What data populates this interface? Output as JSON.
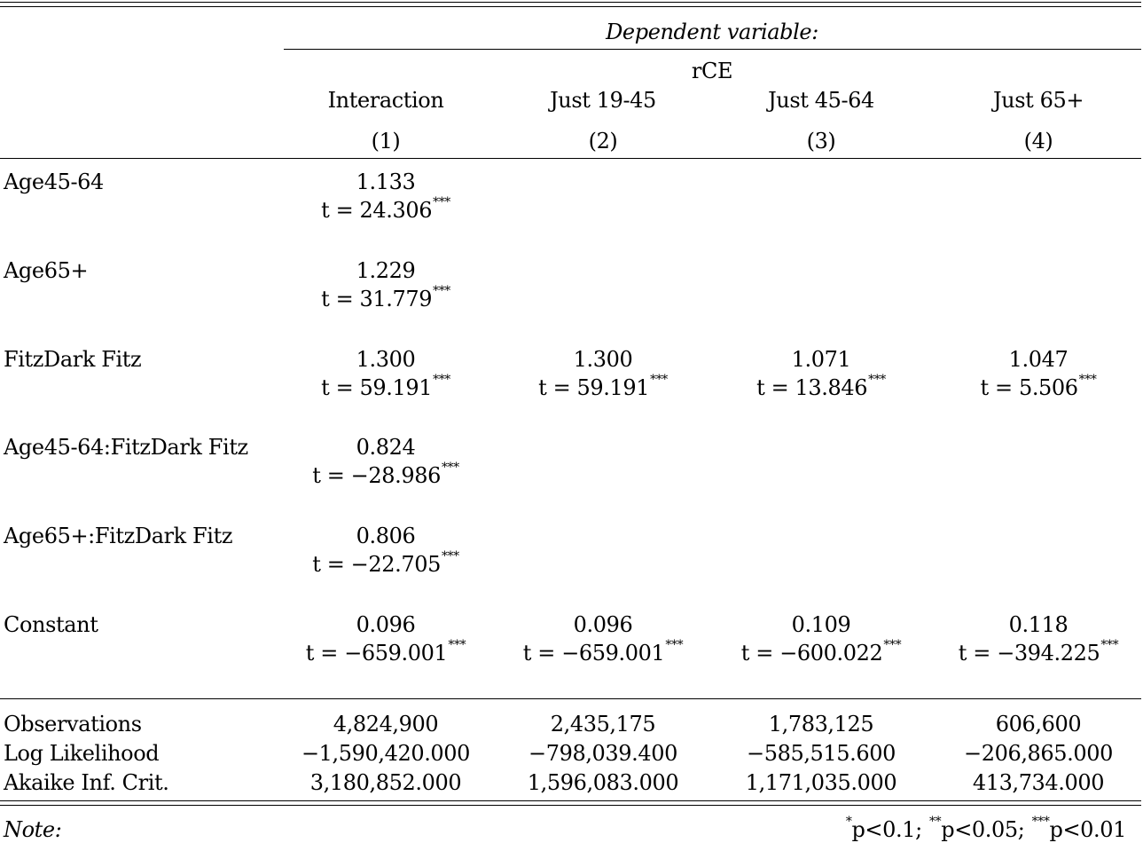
{
  "header": {
    "dependent_variable_label": "Dependent variable:",
    "dependent_variable": "rCE",
    "columns": [
      {
        "model": "Interaction",
        "number": "(1)"
      },
      {
        "model": "Just 19-45",
        "number": "(2)"
      },
      {
        "model": "Just 45-64",
        "number": "(3)"
      },
      {
        "model": "Just 65+",
        "number": "(4)"
      }
    ]
  },
  "rows": [
    {
      "label": "Age45-64",
      "cells": [
        {
          "coef": "1.133",
          "t": "t = 24.306",
          "stars": "***"
        },
        {
          "coef": "",
          "t": "",
          "stars": ""
        },
        {
          "coef": "",
          "t": "",
          "stars": ""
        },
        {
          "coef": "",
          "t": "",
          "stars": ""
        }
      ]
    },
    {
      "label": "Age65+",
      "cells": [
        {
          "coef": "1.229",
          "t": "t = 31.779",
          "stars": "***"
        },
        {
          "coef": "",
          "t": "",
          "stars": ""
        },
        {
          "coef": "",
          "t": "",
          "stars": ""
        },
        {
          "coef": "",
          "t": "",
          "stars": ""
        }
      ]
    },
    {
      "label": "FitzDark Fitz",
      "cells": [
        {
          "coef": "1.300",
          "t": "t = 59.191",
          "stars": "***"
        },
        {
          "coef": "1.300",
          "t": "t = 59.191",
          "stars": "***"
        },
        {
          "coef": "1.071",
          "t": "t = 13.846",
          "stars": "***"
        },
        {
          "coef": "1.047",
          "t": "t = 5.506",
          "stars": "***"
        }
      ]
    },
    {
      "label": "Age45-64:FitzDark Fitz",
      "cells": [
        {
          "coef": "0.824",
          "t": "t = −28.986",
          "stars": "***"
        },
        {
          "coef": "",
          "t": "",
          "stars": ""
        },
        {
          "coef": "",
          "t": "",
          "stars": ""
        },
        {
          "coef": "",
          "t": "",
          "stars": ""
        }
      ]
    },
    {
      "label": "Age65+:FitzDark Fitz",
      "cells": [
        {
          "coef": "0.806",
          "t": "t = −22.705",
          "stars": "***"
        },
        {
          "coef": "",
          "t": "",
          "stars": ""
        },
        {
          "coef": "",
          "t": "",
          "stars": ""
        },
        {
          "coef": "",
          "t": "",
          "stars": ""
        }
      ]
    },
    {
      "label": "Constant",
      "cells": [
        {
          "coef": "0.096",
          "t": "t = −659.001",
          "stars": "***"
        },
        {
          "coef": "0.096",
          "t": "t = −659.001",
          "stars": "***"
        },
        {
          "coef": "0.109",
          "t": "t = −600.022",
          "stars": "***"
        },
        {
          "coef": "0.118",
          "t": "t = −394.225",
          "stars": "***"
        }
      ]
    }
  ],
  "stats": [
    {
      "label": "Observations",
      "values": [
        "4,824,900",
        "2,435,175",
        "1,783,125",
        "606,600"
      ]
    },
    {
      "label": "Log Likelihood",
      "values": [
        "−1,590,420.000",
        "−798,039.400",
        "−585,515.600",
        "−206,865.000"
      ]
    },
    {
      "label": "Akaike Inf. Crit.",
      "values": [
        "3,180,852.000",
        "1,596,083.000",
        "1,171,035.000",
        "413,734.000"
      ]
    }
  ],
  "note": {
    "label": "Note:",
    "significance": [
      {
        "stars": "*",
        "text": "p<0.1;"
      },
      {
        "stars": "**",
        "text": "p<0.05;"
      },
      {
        "stars": "***",
        "text": "p<0.01"
      }
    ]
  }
}
